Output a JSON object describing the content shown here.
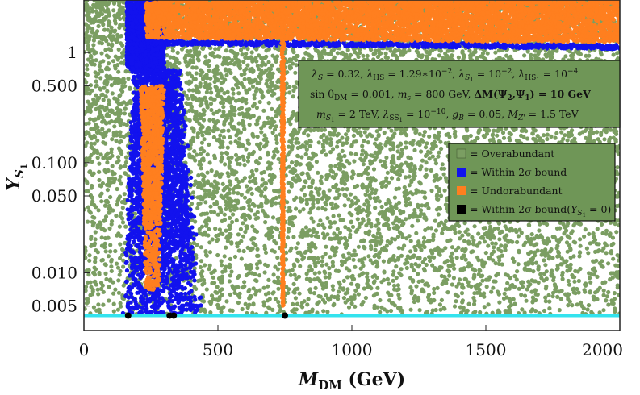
{
  "chart_data": {
    "type": "scatter",
    "x_scale": "linear",
    "y_scale": "log",
    "xlim": [
      0,
      2000
    ],
    "ylim": [
      0.003,
      3.0
    ],
    "xlabel": "M_DM (GeV)",
    "xlabel_parts": {
      "main": "M",
      "sub": "DM",
      "rest": " (GeV)"
    },
    "ylabel": "Y_S1",
    "ylabel_parts": {
      "main": "Y",
      "sub": "S",
      "subsub": "1"
    },
    "x_ticks": [
      {
        "v": 0,
        "label": "0"
      },
      {
        "v": 500,
        "label": "500"
      },
      {
        "v": 1000,
        "label": "1000"
      },
      {
        "v": 1500,
        "label": "1500"
      },
      {
        "v": 2000,
        "label": "2000"
      }
    ],
    "y_ticks": [
      {
        "v": 0.005,
        "label": "0.005"
      },
      {
        "v": 0.01,
        "label": "0.010"
      },
      {
        "v": 0.05,
        "label": "0.050"
      },
      {
        "v": 0.1,
        "label": "0.100"
      },
      {
        "v": 0.5,
        "label": "0.500"
      },
      {
        "v": 1,
        "label": "1"
      }
    ],
    "series": [
      {
        "name": "= Overabundant",
        "color": "#7b9e62",
        "region": "fills nearly whole plane above the undorabundant boundary",
        "density": "dense near top, sparser toward bottom"
      },
      {
        "name": "= Within 2σ bound",
        "color": "#1212ee",
        "region": "funnel around Mh/2 region (~150–430 GeV) and top band from ~180–250 GeV; thin line along top around 1.1–1.5",
        "density": "dense"
      },
      {
        "name": "= Undorabundant",
        "color": "#ff7f1f",
        "region": "top band x≈230–2000 with Y≳1.3; funnel x≈200–330 below 0.5; narrow resonance near x≈735–755",
        "density": "dense"
      },
      {
        "name": "= Within 2σ bound(Y_S1 = 0)",
        "color": "#000000",
        "region": "few points at Y≈0.004",
        "points": [
          [
            165,
            0.0041
          ],
          [
            320,
            0.0041
          ],
          [
            335,
            0.0041
          ],
          [
            750,
            0.0041
          ]
        ]
      }
    ],
    "reference_line": {
      "y": 0.0041,
      "color": "#33e3ee"
    },
    "info_box_lines": [
      "λ_S = 0.32, λ_HS = 1.29*10^-2, λ_S1 = 10^-2, λ_HS1 = 10^-4",
      "sin θ_DM = 0.001, m_s = 800 GeV, ΔM(Ψ2,Ψ1) = 10 GeV",
      "m_S1 = 2 TeV, λ_SS1 = 10^-10, g_B = 0.05, M_Z' = 1.5 TeV"
    ],
    "legend_placement": "right-center",
    "grid": false
  },
  "info": {
    "line1": {
      "a": "λ",
      "a_sub": "S",
      "a_val": " = 0.32, ",
      "b": "λ",
      "b_sub": "HS",
      "b_val": " = 1.29∗10",
      "b_exp": "−2",
      "b_end": ", ",
      "c": "λ",
      "c_sub": "S",
      "c_subsub": "1",
      "c_val": " = 10",
      "c_exp": "−2",
      "c_end": ", ",
      "d": "λ",
      "d_sub": "HS",
      "d_subsub": "1",
      "d_val": " = 10",
      "d_exp": "−4"
    },
    "line2": {
      "a": "sin θ",
      "a_sub": "DM",
      "a_val": " = 0.001,   ",
      "b": "m",
      "b_sub": "s",
      "b_val": " = 800 GeV,  ",
      "c": "ΔM(Ψ",
      "c_sub1": "2",
      "c_mid": ",Ψ",
      "c_sub2": "1",
      "c_end": ") = 10 GeV"
    },
    "line3": {
      "a": "m",
      "a_sub": "S",
      "a_subsub": "1",
      "a_val": " = 2 TeV, ",
      "b": "λ",
      "b_sub": "SS",
      "b_subsub": "1",
      "b_val": " = 10",
      "b_exp": "−10",
      "b_end": ",  ",
      "c": "g",
      "c_sub": "B",
      "c_val": " = 0.05,  ",
      "d": "M",
      "d_sub": "Z'",
      "d_val": " = 1.5 TeV"
    }
  },
  "legend": {
    "items": [
      {
        "label": "= Overabundant",
        "color": "#7b9e62"
      },
      {
        "label": "= Within 2σ bound",
        "color": "#1212ee"
      },
      {
        "label": "= Undorabundant",
        "color": "#ff7f1f"
      },
      {
        "label": "= Within 2σ bound(",
        "label_sym": "Y",
        "label_sub": "S",
        "label_subsub": "1",
        "label_end": " = 0)",
        "color": "#000000"
      }
    ]
  },
  "colors": {
    "green": "#7b9e62",
    "blue": "#1212ee",
    "orange": "#ff7f1f",
    "black": "#000000",
    "cyan": "#33e3ee",
    "box_bg": "#6f9657"
  }
}
